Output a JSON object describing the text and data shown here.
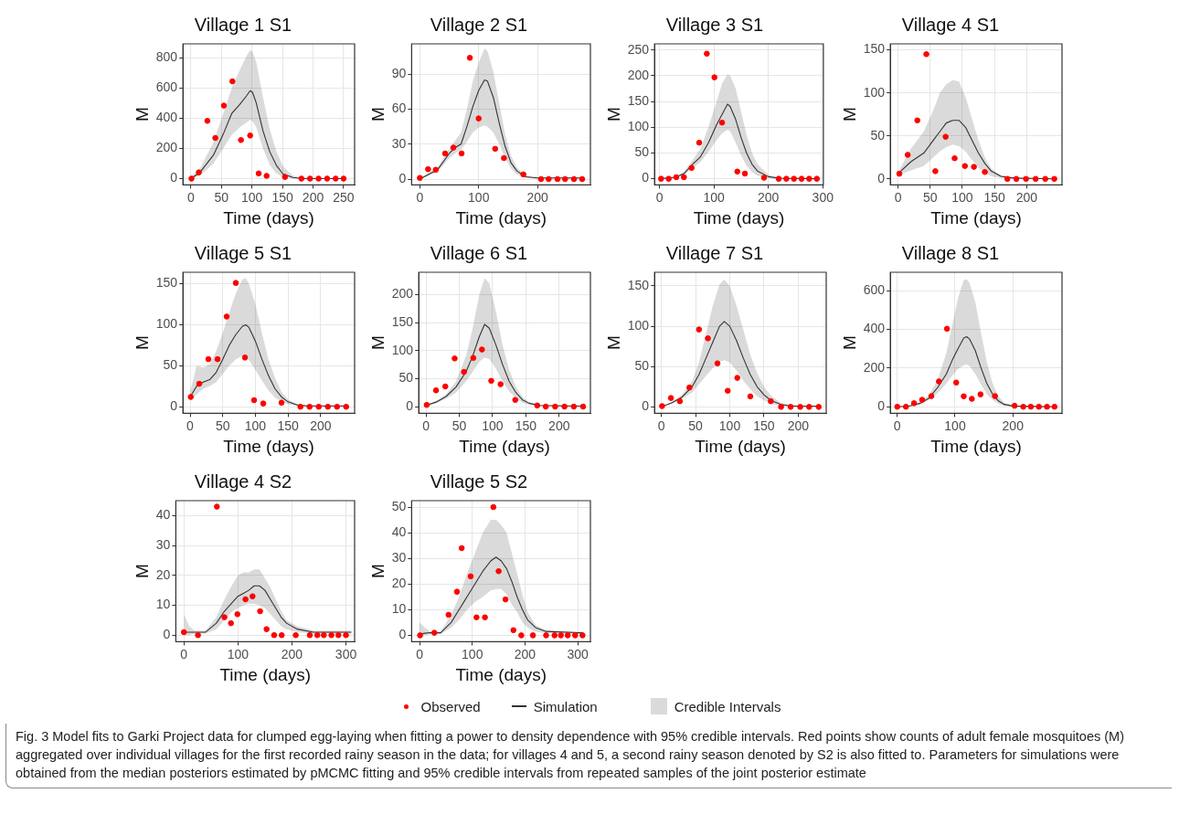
{
  "chart_data": [
    {
      "type": "scatter",
      "title": "Village 1 S1",
      "xlabel": "Time (days)",
      "ylabel": "M",
      "xlim": [
        -13,
        268
      ],
      "ylim": [
        -42,
        892
      ],
      "xticks": [
        0,
        50,
        100,
        150,
        200,
        250
      ],
      "yticks": [
        0,
        200,
        400,
        600,
        800
      ],
      "grid": true,
      "legend": "bottom",
      "annotations": [
        "Credible Intervals",
        "Fig. 3 Model fits to Garki Project data for clumped egg-laying when fitting a power to density dependence with 95% credible intervals. Red points show counts of adult female mosquitoes (M) aggregated over individual villages for the first recorded rainy season in the data; for villages 4 and 5, a second rainy season denoted by S2 is also fitted to. Parameters for simulations were obtained from the median posteriors estimated by pMCMC fitting and 95% credible intervals from repeated samples of the joint posterior estimate"
      ],
      "series": [
        {
          "name": "Observed",
          "type": "scatter",
          "marker": "circle",
          "color": "#ff0000",
          "x": [
            1,
            13,
            27,
            40,
            54,
            68,
            82,
            97,
            111,
            124,
            154,
            181,
            195,
            209,
            223,
            237,
            250
          ],
          "values": [
            0,
            41,
            382,
            269,
            483,
            644,
            255,
            285,
            34,
            18,
            11,
            0,
            0,
            0,
            0,
            0,
            0
          ]
        },
        {
          "name": "Simulation",
          "type": "line",
          "marker": "none",
          "line_style": "solid",
          "color": "#333333",
          "x": [
            0,
            15,
            37,
            53,
            67,
            80,
            91,
            97,
            101,
            107,
            118,
            129,
            140,
            151,
            167,
            183,
            250
          ],
          "values": [
            0,
            41,
            156,
            294,
            432,
            490,
            547,
            582,
            570,
            501,
            317,
            179,
            87,
            30,
            7,
            0,
            0
          ],
          "upper": [
            10,
            70,
            240,
            430,
            600,
            720,
            810,
            850,
            840,
            770,
            540,
            330,
            180,
            80,
            20,
            5,
            0
          ],
          "lower": [
            0,
            20,
            100,
            200,
            290,
            340,
            370,
            390,
            380,
            340,
            200,
            90,
            35,
            10,
            2,
            0,
            0
          ]
        }
      ]
    },
    {
      "type": "scatter",
      "title": "Village 2 S1",
      "xlabel": "Time (days)",
      "ylabel": "M",
      "xlim": [
        -14,
        290
      ],
      "ylim": [
        -5,
        116
      ],
      "xticks": [
        0,
        100,
        200
      ],
      "yticks": [
        0,
        30,
        60,
        90
      ],
      "grid": true,
      "series": [
        {
          "type": "scatter",
          "marker": "circle",
          "color": "#ff0000",
          "x": [
            0,
            14,
            27,
            43,
            57,
            71,
            85,
            100,
            128,
            143,
            176,
            206,
            219,
            234,
            247,
            262,
            276
          ],
          "values": [
            1,
            8.5,
            8,
            22,
            27,
            22,
            104,
            52,
            26,
            18,
            4,
            0,
            0,
            0,
            0,
            0,
            0
          ]
        },
        {
          "type": "line",
          "marker": "none",
          "line_style": "solid",
          "color": "#333333",
          "x": [
            0,
            30,
            50,
            60,
            70,
            80,
            90,
            100,
            110,
            115,
            125,
            135,
            145,
            155,
            165,
            180,
            200,
            276
          ],
          "values": [
            0,
            8,
            22,
            27,
            30,
            45,
            62,
            76,
            85,
            84,
            70,
            48,
            28,
            14,
            7,
            2,
            1,
            1
          ],
          "upper": [
            1,
            10,
            26,
            33,
            40,
            60,
            84,
            100,
            112,
            110,
            92,
            65,
            38,
            20,
            10,
            3,
            1,
            1
          ],
          "lower": [
            0,
            6,
            18,
            22,
            25,
            32,
            40,
            44,
            46,
            45,
            40,
            30,
            18,
            9,
            4,
            1,
            0,
            0
          ]
        }
      ]
    },
    {
      "type": "scatter",
      "title": "Village 3 S1",
      "xlabel": "Time (days)",
      "ylabel": "M",
      "xlim": [
        -9,
        301
      ],
      "ylim": [
        -12,
        262
      ],
      "xticks": [
        0,
        100,
        200,
        300
      ],
      "yticks": [
        0,
        50,
        100,
        150,
        200,
        250
      ],
      "grid": true,
      "series": [
        {
          "type": "scatter",
          "marker": "circle",
          "color": "#ff0000",
          "x": [
            3,
            17,
            31,
            45,
            59,
            73,
            87,
            101,
            115,
            143,
            157,
            192,
            219,
            233,
            247,
            261,
            275,
            289
          ],
          "values": [
            0,
            0,
            3,
            3,
            21,
            70,
            243,
            197,
            109,
            14,
            10,
            2,
            0,
            0,
            0,
            0,
            0,
            0
          ]
        },
        {
          "type": "line",
          "marker": "none",
          "line_style": "solid",
          "color": "#333333",
          "x": [
            0,
            30,
            45,
            60,
            75,
            90,
            105,
            115,
            125,
            130,
            140,
            150,
            160,
            170,
            180,
            200,
            220,
            289
          ],
          "values": [
            0,
            3,
            10,
            27,
            42,
            70,
            105,
            125,
            145,
            140,
            115,
            80,
            50,
            28,
            15,
            4,
            1,
            0
          ],
          "upper": [
            0,
            4,
            14,
            35,
            58,
            100,
            150,
            185,
            203,
            200,
            175,
            130,
            85,
            50,
            28,
            8,
            2,
            0
          ],
          "lower": [
            0,
            2,
            7,
            20,
            32,
            52,
            75,
            88,
            95,
            92,
            70,
            45,
            25,
            13,
            6,
            1,
            0,
            0
          ]
        }
      ]
    },
    {
      "type": "scatter",
      "title": "Village 4 S1",
      "xlabel": "Time (days)",
      "ylabel": "M",
      "xlim": [
        -12,
        255
      ],
      "ylim": [
        -7,
        157
      ],
      "xticks": [
        0,
        50,
        100,
        150,
        200
      ],
      "yticks": [
        0,
        50,
        100,
        150
      ],
      "grid": true,
      "series": [
        {
          "type": "scatter",
          "marker": "circle",
          "color": "#ff0000",
          "x": [
            2,
            15,
            30,
            44,
            58,
            74,
            88,
            104,
            118,
            135,
            170,
            184,
            199,
            214,
            229,
            243
          ],
          "values": [
            6,
            28,
            68,
            145,
            9,
            49,
            24,
            15,
            14,
            8,
            0,
            0,
            0,
            0,
            0,
            0
          ]
        },
        {
          "type": "line",
          "marker": "none",
          "line_style": "solid",
          "color": "#333333",
          "x": [
            0,
            20,
            40,
            55,
            65,
            75,
            85,
            95,
            105,
            115,
            125,
            135,
            145,
            160,
            180,
            243
          ],
          "values": [
            6,
            20,
            30,
            45,
            55,
            65,
            68,
            68,
            60,
            45,
            30,
            18,
            9,
            3,
            1,
            0
          ],
          "upper": [
            8,
            35,
            55,
            80,
            100,
            110,
            115,
            113,
            95,
            70,
            45,
            25,
            12,
            4,
            1,
            0
          ],
          "lower": [
            4,
            10,
            15,
            25,
            32,
            37,
            40,
            38,
            32,
            22,
            13,
            7,
            3,
            1,
            0,
            0
          ]
        }
      ]
    },
    {
      "type": "scatter",
      "title": "Village 5 S1",
      "xlabel": "Time (days)",
      "ylabel": "M",
      "xlim": [
        -11,
        252
      ],
      "ylim": [
        -8,
        164
      ],
      "xticks": [
        0,
        50,
        100,
        150,
        200
      ],
      "yticks": [
        0,
        50,
        100,
        150
      ],
      "grid": true,
      "series": [
        {
          "type": "scatter",
          "marker": "circle",
          "color": "#ff0000",
          "x": [
            1,
            14,
            28,
            42,
            56,
            70,
            84,
            98,
            112,
            140,
            169,
            183,
            197,
            211,
            225,
            239
          ],
          "values": [
            12,
            28,
            58,
            58,
            110,
            151,
            60,
            8,
            4,
            5,
            0,
            0,
            0,
            0,
            0,
            0
          ]
        },
        {
          "type": "line",
          "marker": "none",
          "line_style": "solid",
          "color": "#333333",
          "x": [
            0,
            10,
            20,
            30,
            40,
            50,
            60,
            70,
            80,
            85,
            90,
            100,
            110,
            120,
            130,
            140,
            150,
            165,
            180,
            239
          ],
          "values": [
            12,
            25,
            30,
            33,
            42,
            58,
            75,
            88,
            98,
            100,
            97,
            80,
            58,
            38,
            22,
            12,
            6,
            2,
            1,
            1
          ],
          "upper": [
            18,
            50,
            48,
            52,
            68,
            90,
            115,
            138,
            155,
            157,
            150,
            125,
            90,
            58,
            35,
            18,
            9,
            3,
            1,
            1
          ],
          "lower": [
            8,
            15,
            22,
            25,
            30,
            40,
            50,
            58,
            62,
            60,
            57,
            45,
            32,
            20,
            11,
            6,
            3,
            1,
            0,
            0
          ]
        }
      ]
    },
    {
      "type": "scatter",
      "title": "Village 6 S1",
      "xlabel": "Time (days)",
      "ylabel": "M",
      "xlim": [
        -11,
        247
      ],
      "ylim": [
        -12,
        240
      ],
      "xticks": [
        0,
        50,
        100,
        150,
        200
      ],
      "yticks": [
        0,
        50,
        100,
        150,
        200
      ],
      "grid": true,
      "series": [
        {
          "type": "scatter",
          "marker": "circle",
          "color": "#ff0000",
          "x": [
            1,
            15,
            29,
            43,
            57,
            71,
            84,
            98,
            112,
            134,
            167,
            180,
            194,
            208,
            222,
            236
          ],
          "values": [
            3,
            29,
            36,
            86,
            62,
            87,
            102,
            46,
            40,
            12,
            2,
            0,
            0,
            0,
            0,
            0
          ]
        },
        {
          "type": "line",
          "marker": "none",
          "line_style": "solid",
          "color": "#333333",
          "x": [
            0,
            15,
            30,
            45,
            60,
            70,
            80,
            88,
            95,
            105,
            115,
            125,
            135,
            145,
            155,
            170,
            236
          ],
          "values": [
            2,
            8,
            18,
            35,
            62,
            90,
            125,
            147,
            140,
            110,
            75,
            45,
            25,
            12,
            6,
            2,
            1
          ],
          "upper": [
            3,
            10,
            22,
            45,
            90,
            140,
            200,
            230,
            220,
            170,
            110,
            65,
            35,
            17,
            8,
            3,
            1
          ],
          "lower": [
            1,
            6,
            14,
            25,
            45,
            62,
            80,
            88,
            85,
            68,
            45,
            27,
            15,
            7,
            3,
            1,
            0
          ]
        }
      ]
    },
    {
      "type": "scatter",
      "title": "Village 7 S1",
      "xlabel": "Time (days)",
      "ylabel": "M",
      "xlim": [
        -10,
        241
      ],
      "ylim": [
        -8,
        167
      ],
      "xticks": [
        0,
        50,
        100,
        150,
        200
      ],
      "yticks": [
        0,
        50,
        100,
        150
      ],
      "grid": true,
      "series": [
        {
          "type": "scatter",
          "marker": "circle",
          "color": "#ff0000",
          "x": [
            1,
            14,
            27,
            41,
            55,
            68,
            82,
            97,
            111,
            130,
            160,
            175,
            189,
            203,
            216,
            230
          ],
          "values": [
            1,
            11,
            7,
            24,
            96,
            85,
            54,
            20,
            36,
            13,
            7,
            0,
            0,
            0,
            0,
            0
          ]
        },
        {
          "type": "line",
          "marker": "none",
          "line_style": "solid",
          "color": "#333333",
          "x": [
            0,
            15,
            30,
            45,
            55,
            65,
            75,
            85,
            92,
            100,
            110,
            120,
            130,
            140,
            150,
            160,
            175,
            190,
            230
          ],
          "values": [
            0,
            5,
            12,
            25,
            40,
            60,
            80,
            100,
            106,
            100,
            82,
            60,
            40,
            25,
            15,
            8,
            3,
            1,
            1
          ],
          "upper": [
            0,
            6,
            15,
            32,
            55,
            90,
            125,
            152,
            158,
            150,
            125,
            95,
            65,
            42,
            25,
            14,
            5,
            2,
            1
          ],
          "lower": [
            0,
            4,
            10,
            18,
            28,
            38,
            48,
            56,
            58,
            55,
            45,
            32,
            22,
            13,
            8,
            4,
            1,
            0,
            0
          ]
        }
      ]
    },
    {
      "type": "scatter",
      "title": "Village 8 S1",
      "xlabel": "Time (days)",
      "ylabel": "M",
      "xlim": [
        -12,
        285
      ],
      "ylim": [
        -34,
        695
      ],
      "xticks": [
        0,
        100,
        200
      ],
      "yticks": [
        0,
        200,
        400,
        600
      ],
      "grid": true,
      "series": [
        {
          "type": "scatter",
          "marker": "circle",
          "color": "#ff0000",
          "x": [
            0,
            15,
            29,
            43,
            59,
            72,
            86,
            102,
            115,
            129,
            144,
            169,
            203,
            218,
            231,
            245,
            259,
            272
          ],
          "values": [
            0,
            0,
            18,
            36,
            55,
            131,
            403,
            125,
            54,
            41,
            64,
            55,
            5,
            0,
            0,
            0,
            0,
            0
          ]
        },
        {
          "type": "line",
          "marker": "none",
          "line_style": "solid",
          "color": "#333333",
          "x": [
            0,
            20,
            40,
            55,
            70,
            85,
            95,
            105,
            115,
            120,
            125,
            135,
            145,
            155,
            165,
            175,
            185,
            200,
            272
          ],
          "values": [
            0,
            3,
            18,
            45,
            100,
            170,
            240,
            300,
            355,
            362,
            350,
            290,
            200,
            120,
            65,
            30,
            12,
            4,
            0
          ],
          "upper": [
            0,
            4,
            25,
            60,
            140,
            280,
            420,
            560,
            655,
            660,
            640,
            540,
            380,
            230,
            120,
            55,
            20,
            6,
            0
          ],
          "lower": [
            0,
            2,
            12,
            35,
            70,
            120,
            160,
            195,
            215,
            218,
            210,
            170,
            115,
            65,
            35,
            15,
            5,
            1,
            0
          ]
        }
      ]
    },
    {
      "type": "scatter",
      "title": "Village 4 S2",
      "xlabel": "Time (days)",
      "ylabel": "M",
      "xlim": [
        -15,
        316
      ],
      "ylim": [
        -2.2,
        45
      ],
      "xticks": [
        0,
        100,
        200,
        300
      ],
      "yticks": [
        0,
        10,
        20,
        30,
        40
      ],
      "grid": true,
      "series": [
        {
          "type": "scatter",
          "marker": "circle",
          "color": "#ff0000",
          "x": [
            0,
            26,
            61,
            75,
            87,
            99,
            114,
            127,
            141,
            153,
            167,
            181,
            207,
            233,
            247,
            259,
            273,
            286,
            300
          ],
          "values": [
            1,
            0,
            43,
            6,
            4,
            7,
            12,
            13,
            8,
            2,
            0,
            0,
            0,
            0,
            0,
            0,
            0,
            0,
            0
          ]
        },
        {
          "type": "line",
          "marker": "none",
          "line_style": "solid",
          "color": "#333333",
          "x": [
            0,
            10,
            20,
            40,
            60,
            75,
            90,
            100,
            110,
            120,
            130,
            140,
            150,
            160,
            170,
            180,
            190,
            210,
            240,
            300,
            310
          ],
          "values": [
            1,
            1,
            1,
            1,
            4,
            8,
            11,
            13,
            14,
            15,
            16.5,
            16.5,
            15,
            12,
            9,
            6,
            4,
            2,
            1,
            1,
            1
          ],
          "upper": [
            7,
            3,
            1.5,
            1.5,
            6,
            12,
            17,
            20,
            21,
            21,
            22,
            22,
            19,
            16,
            12,
            8,
            5,
            3,
            1.5,
            1.5,
            1.5
          ],
          "lower": [
            0,
            0,
            0.5,
            0.5,
            2,
            5,
            8,
            9,
            10,
            10.5,
            10.5,
            10,
            9,
            7,
            5,
            3,
            2,
            1,
            0.5,
            0.5,
            0.5
          ]
        }
      ]
    },
    {
      "type": "scatter",
      "title": "Village 5 S2",
      "xlabel": "Time (days)",
      "ylabel": "M",
      "xlim": [
        -15,
        324
      ],
      "ylim": [
        -2.5,
        52.5
      ],
      "xticks": [
        0,
        100,
        200,
        300
      ],
      "yticks": [
        0,
        10,
        20,
        30,
        40,
        50
      ],
      "grid": true,
      "series": [
        {
          "type": "scatter",
          "marker": "circle",
          "color": "#ff0000",
          "x": [
            1,
            28,
            55,
            71,
            80,
            97,
            108,
            124,
            140,
            150,
            163,
            178,
            193,
            215,
            240,
            256,
            268,
            281,
            295,
            309
          ],
          "values": [
            0,
            1,
            8,
            17,
            34,
            23,
            7,
            7,
            50,
            25,
            14,
            2,
            0,
            0,
            0,
            0,
            0,
            0,
            0,
            0
          ]
        },
        {
          "type": "line",
          "marker": "none",
          "line_style": "solid",
          "color": "#333333",
          "x": [
            0,
            10,
            20,
            40,
            60,
            75,
            90,
            105,
            120,
            135,
            145,
            155,
            165,
            175,
            185,
            195,
            205,
            220,
            240,
            300,
            310
          ],
          "values": [
            0.5,
            0.8,
            1,
            1,
            5,
            10,
            15,
            20,
            25,
            29,
            30.5,
            29,
            26,
            21,
            15,
            10,
            6,
            3,
            1.5,
            1,
            1
          ],
          "upper": [
            5,
            3,
            1.5,
            1.5,
            8,
            15,
            24,
            32,
            40,
            45,
            45,
            43,
            40,
            32,
            24,
            16,
            9,
            4,
            2,
            1.5,
            1.5
          ],
          "lower": [
            0,
            0,
            0.5,
            0.5,
            3,
            6,
            10,
            13,
            15,
            17.5,
            18,
            18,
            16,
            12,
            9,
            5,
            3,
            1.5,
            0.8,
            0.5,
            0.5
          ]
        }
      ]
    }
  ]
}
